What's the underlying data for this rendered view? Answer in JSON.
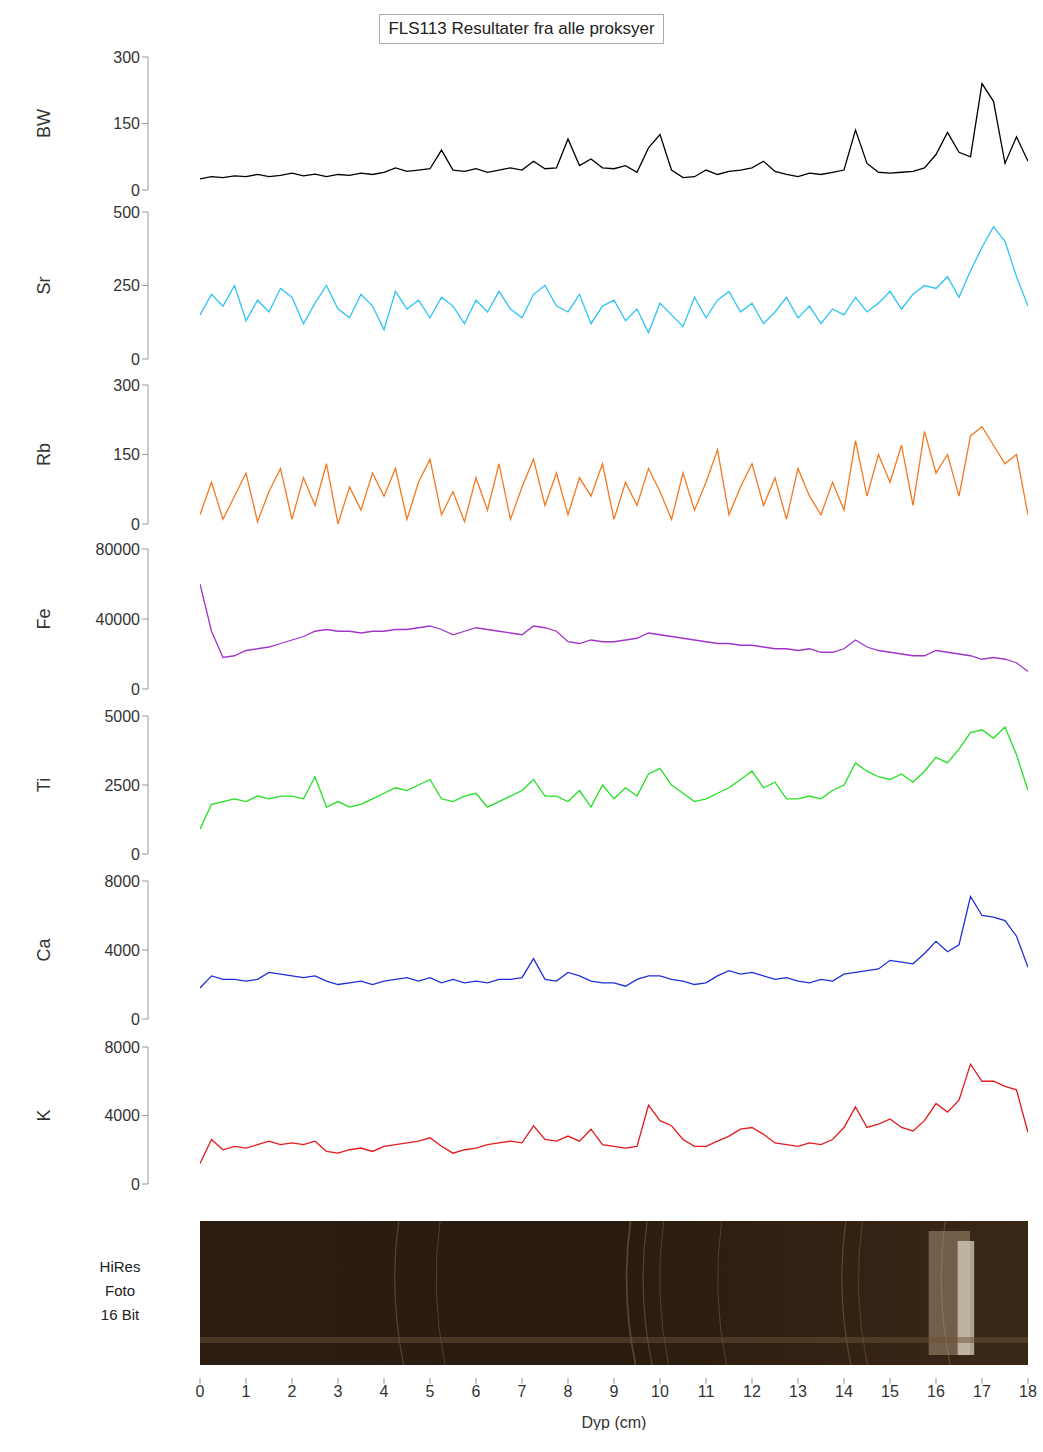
{
  "title": "FLS113 Resultater fra alle proksyer",
  "photo_label": [
    "HiRes",
    "Foto",
    "16 Bit"
  ],
  "x_axis": {
    "label": "Dyp (cm)",
    "xlim": [
      0,
      18
    ],
    "xticks": [
      0,
      1,
      2,
      3,
      4,
      5,
      6,
      7,
      8,
      9,
      10,
      11,
      12,
      13,
      14,
      15,
      16,
      17,
      18
    ]
  },
  "chart_data": [
    {
      "type": "line",
      "y_label": "BW",
      "ylim": [
        0,
        300
      ],
      "yticks": [
        0,
        150,
        300
      ],
      "xlim": [
        0,
        18
      ],
      "tick_labels": "y",
      "x": [
        0,
        0.25,
        0.5,
        0.75,
        1,
        1.25,
        1.5,
        1.75,
        2,
        2.25,
        2.5,
        2.75,
        3,
        3.25,
        3.5,
        3.75,
        4,
        4.25,
        4.5,
        4.75,
        5,
        5.25,
        5.5,
        5.75,
        6,
        6.25,
        6.5,
        6.75,
        7,
        7.25,
        7.5,
        7.75,
        8,
        8.25,
        8.5,
        8.75,
        9,
        9.25,
        9.5,
        9.75,
        10,
        10.25,
        10.5,
        10.75,
        11,
        11.25,
        11.5,
        11.75,
        12,
        12.25,
        12.5,
        12.75,
        13,
        13.25,
        13.5,
        13.75,
        14,
        14.25,
        14.5,
        14.75,
        15,
        15.25,
        15.5,
        15.75,
        16,
        16.25,
        16.5,
        16.75,
        17,
        17.25,
        17.5,
        17.75,
        18
      ],
      "series": [
        {
          "color": "#000000",
          "values": [
            25,
            30,
            28,
            32,
            30,
            35,
            30,
            33,
            38,
            32,
            36,
            30,
            35,
            33,
            38,
            35,
            40,
            50,
            42,
            45,
            48,
            90,
            45,
            42,
            48,
            40,
            45,
            50,
            45,
            65,
            48,
            50,
            115,
            55,
            70,
            50,
            48,
            55,
            40,
            95,
            125,
            45,
            28,
            30,
            45,
            35,
            42,
            45,
            50,
            65,
            42,
            35,
            30,
            38,
            35,
            40,
            45,
            135,
            60,
            40,
            38,
            40,
            42,
            50,
            80,
            130,
            85,
            75,
            240,
            200,
            60,
            120,
            65
          ]
        }
      ]
    },
    {
      "type": "line",
      "y_label": "Sr",
      "ylim": [
        0,
        500
      ],
      "yticks": [
        0,
        250,
        500
      ],
      "xlim": [
        0,
        18
      ],
      "tick_labels": "y",
      "x": [
        0,
        0.25,
        0.5,
        0.75,
        1,
        1.25,
        1.5,
        1.75,
        2,
        2.25,
        2.5,
        2.75,
        3,
        3.25,
        3.5,
        3.75,
        4,
        4.25,
        4.5,
        4.75,
        5,
        5.25,
        5.5,
        5.75,
        6,
        6.25,
        6.5,
        6.75,
        7,
        7.25,
        7.5,
        7.75,
        8,
        8.25,
        8.5,
        8.75,
        9,
        9.25,
        9.5,
        9.75,
        10,
        10.25,
        10.5,
        10.75,
        11,
        11.25,
        11.5,
        11.75,
        12,
        12.25,
        12.5,
        12.75,
        13,
        13.25,
        13.5,
        13.75,
        14,
        14.25,
        14.5,
        14.75,
        15,
        15.25,
        15.5,
        15.75,
        16,
        16.25,
        16.5,
        16.75,
        17,
        17.25,
        17.5,
        17.75,
        18
      ],
      "series": [
        {
          "color": "#2ec4f4",
          "values": [
            150,
            220,
            180,
            250,
            130,
            200,
            160,
            240,
            210,
            120,
            190,
            250,
            170,
            140,
            220,
            180,
            100,
            230,
            170,
            200,
            140,
            210,
            180,
            120,
            200,
            160,
            230,
            170,
            140,
            220,
            250,
            180,
            160,
            220,
            120,
            180,
            200,
            130,
            170,
            90,
            190,
            150,
            110,
            210,
            140,
            200,
            230,
            160,
            190,
            120,
            160,
            210,
            140,
            180,
            120,
            170,
            150,
            210,
            160,
            190,
            230,
            170,
            220,
            250,
            240,
            280,
            210,
            300,
            380,
            450,
            400,
            280,
            180
          ]
        }
      ]
    },
    {
      "type": "line",
      "y_label": "Rb",
      "ylim": [
        0,
        300
      ],
      "yticks": [
        0,
        150,
        300
      ],
      "xlim": [
        0,
        18
      ],
      "tick_labels": "y",
      "x": [
        0,
        0.25,
        0.5,
        0.75,
        1,
        1.25,
        1.5,
        1.75,
        2,
        2.25,
        2.5,
        2.75,
        3,
        3.25,
        3.5,
        3.75,
        4,
        4.25,
        4.5,
        4.75,
        5,
        5.25,
        5.5,
        5.75,
        6,
        6.25,
        6.5,
        6.75,
        7,
        7.25,
        7.5,
        7.75,
        8,
        8.25,
        8.5,
        8.75,
        9,
        9.25,
        9.5,
        9.75,
        10,
        10.25,
        10.5,
        10.75,
        11,
        11.25,
        11.5,
        11.75,
        12,
        12.25,
        12.5,
        12.75,
        13,
        13.25,
        13.5,
        13.75,
        14,
        14.25,
        14.5,
        14.75,
        15,
        15.25,
        15.5,
        15.75,
        16,
        16.25,
        16.5,
        16.75,
        17,
        17.25,
        17.5,
        17.75,
        18
      ],
      "series": [
        {
          "color": "#f47920",
          "values": [
            20,
            90,
            10,
            60,
            110,
            5,
            70,
            120,
            10,
            100,
            40,
            130,
            0,
            80,
            30,
            110,
            60,
            120,
            10,
            90,
            140,
            20,
            70,
            5,
            100,
            30,
            130,
            10,
            80,
            140,
            40,
            110,
            20,
            100,
            60,
            130,
            10,
            90,
            40,
            120,
            70,
            10,
            110,
            30,
            90,
            160,
            20,
            80,
            130,
            40,
            100,
            10,
            120,
            60,
            20,
            90,
            30,
            180,
            60,
            150,
            90,
            170,
            40,
            200,
            110,
            150,
            60,
            190,
            210,
            170,
            130,
            150,
            20
          ]
        }
      ]
    },
    {
      "type": "line",
      "y_label": "Fe",
      "ylim": [
        0,
        80000
      ],
      "yticks": [
        0,
        40000,
        80000
      ],
      "xlim": [
        0,
        18
      ],
      "tick_labels": "y",
      "x": [
        0,
        0.25,
        0.5,
        0.75,
        1,
        1.25,
        1.5,
        1.75,
        2,
        2.25,
        2.5,
        2.75,
        3,
        3.25,
        3.5,
        3.75,
        4,
        4.25,
        4.5,
        4.75,
        5,
        5.25,
        5.5,
        5.75,
        6,
        6.25,
        6.5,
        6.75,
        7,
        7.25,
        7.5,
        7.75,
        8,
        8.25,
        8.5,
        8.75,
        9,
        9.25,
        9.5,
        9.75,
        10,
        10.25,
        10.5,
        10.75,
        11,
        11.25,
        11.5,
        11.75,
        12,
        12.25,
        12.5,
        12.75,
        13,
        13.25,
        13.5,
        13.75,
        14,
        14.25,
        14.5,
        14.75,
        15,
        15.25,
        15.5,
        15.75,
        16,
        16.25,
        16.5,
        16.75,
        17,
        17.25,
        17.5,
        17.75,
        18
      ],
      "series": [
        {
          "color": "#a035c8",
          "values": [
            60000,
            33000,
            18000,
            19000,
            22000,
            23000,
            24000,
            26000,
            28000,
            30000,
            33000,
            34000,
            33000,
            33000,
            32000,
            33000,
            33000,
            34000,
            34000,
            35000,
            36000,
            34000,
            31000,
            33000,
            35000,
            34000,
            33000,
            32000,
            31000,
            36000,
            35000,
            33000,
            27000,
            26000,
            28000,
            27000,
            27000,
            28000,
            29000,
            32000,
            31000,
            30000,
            29000,
            28000,
            27000,
            26000,
            26000,
            25000,
            25000,
            24000,
            23000,
            23000,
            22000,
            23000,
            21000,
            21000,
            23000,
            28000,
            24000,
            22000,
            21000,
            20000,
            19000,
            19000,
            22000,
            21000,
            20000,
            19000,
            17000,
            18000,
            17000,
            15000,
            10000
          ]
        }
      ]
    },
    {
      "type": "line",
      "y_label": "Ti",
      "ylim": [
        0,
        5000
      ],
      "yticks": [
        0,
        2500,
        5000
      ],
      "xlim": [
        0,
        18
      ],
      "tick_labels": "y",
      "x": [
        0,
        0.25,
        0.5,
        0.75,
        1,
        1.25,
        1.5,
        1.75,
        2,
        2.25,
        2.5,
        2.75,
        3,
        3.25,
        3.5,
        3.75,
        4,
        4.25,
        4.5,
        4.75,
        5,
        5.25,
        5.5,
        5.75,
        6,
        6.25,
        6.5,
        6.75,
        7,
        7.25,
        7.5,
        7.75,
        8,
        8.25,
        8.5,
        8.75,
        9,
        9.25,
        9.5,
        9.75,
        10,
        10.25,
        10.5,
        10.75,
        11,
        11.25,
        11.5,
        11.75,
        12,
        12.25,
        12.5,
        12.75,
        13,
        13.25,
        13.5,
        13.75,
        14,
        14.25,
        14.5,
        14.75,
        15,
        15.25,
        15.5,
        15.75,
        16,
        16.25,
        16.5,
        16.75,
        17,
        17.25,
        17.5,
        17.75,
        18
      ],
      "series": [
        {
          "color": "#22e022",
          "values": [
            900,
            1800,
            1900,
            2000,
            1900,
            2100,
            2000,
            2100,
            2100,
            2000,
            2800,
            1700,
            1900,
            1700,
            1800,
            2000,
            2200,
            2400,
            2300,
            2500,
            2700,
            2000,
            1900,
            2100,
            2200,
            1700,
            1900,
            2100,
            2300,
            2700,
            2100,
            2100,
            1900,
            2300,
            1700,
            2500,
            2000,
            2400,
            2100,
            2900,
            3100,
            2500,
            2200,
            1900,
            2000,
            2200,
            2400,
            2700,
            3000,
            2400,
            2600,
            2000,
            2000,
            2100,
            2000,
            2300,
            2500,
            3300,
            3000,
            2800,
            2700,
            2900,
            2600,
            3000,
            3500,
            3300,
            3800,
            4400,
            4500,
            4200,
            4600,
            3600,
            2300
          ]
        }
      ]
    },
    {
      "type": "line",
      "y_label": "Ca",
      "ylim": [
        0,
        8000
      ],
      "yticks": [
        0,
        4000,
        8000
      ],
      "xlim": [
        0,
        18
      ],
      "tick_labels": "y",
      "x": [
        0,
        0.25,
        0.5,
        0.75,
        1,
        1.25,
        1.5,
        1.75,
        2,
        2.25,
        2.5,
        2.75,
        3,
        3.25,
        3.5,
        3.75,
        4,
        4.25,
        4.5,
        4.75,
        5,
        5.25,
        5.5,
        5.75,
        6,
        6.25,
        6.5,
        6.75,
        7,
        7.25,
        7.5,
        7.75,
        8,
        8.25,
        8.5,
        8.75,
        9,
        9.25,
        9.5,
        9.75,
        10,
        10.25,
        10.5,
        10.75,
        11,
        11.25,
        11.5,
        11.75,
        12,
        12.25,
        12.5,
        12.75,
        13,
        13.25,
        13.5,
        13.75,
        14,
        14.25,
        14.5,
        14.75,
        15,
        15.25,
        15.5,
        15.75,
        16,
        16.25,
        16.5,
        16.75,
        17,
        17.25,
        17.5,
        17.75,
        18
      ],
      "series": [
        {
          "color": "#1f2fd8",
          "values": [
            1800,
            2500,
            2300,
            2300,
            2200,
            2300,
            2700,
            2600,
            2500,
            2400,
            2500,
            2200,
            2000,
            2100,
            2200,
            2000,
            2200,
            2300,
            2400,
            2200,
            2400,
            2100,
            2300,
            2100,
            2200,
            2100,
            2300,
            2300,
            2400,
            3500,
            2300,
            2200,
            2700,
            2500,
            2200,
            2100,
            2100,
            1900,
            2300,
            2500,
            2500,
            2300,
            2200,
            2000,
            2100,
            2500,
            2800,
            2600,
            2700,
            2500,
            2300,
            2400,
            2200,
            2100,
            2300,
            2200,
            2600,
            2700,
            2800,
            2900,
            3400,
            3300,
            3200,
            3800,
            4500,
            3900,
            4300,
            7100,
            6000,
            5900,
            5700,
            4800,
            3000
          ]
        }
      ]
    },
    {
      "type": "line",
      "y_label": "K",
      "ylim": [
        0,
        8000
      ],
      "yticks": [
        0,
        4000,
        8000
      ],
      "xlim": [
        0,
        18
      ],
      "tick_labels": "y",
      "x": [
        0,
        0.25,
        0.5,
        0.75,
        1,
        1.25,
        1.5,
        1.75,
        2,
        2.25,
        2.5,
        2.75,
        3,
        3.25,
        3.5,
        3.75,
        4,
        4.25,
        4.5,
        4.75,
        5,
        5.25,
        5.5,
        5.75,
        6,
        6.25,
        6.5,
        6.75,
        7,
        7.25,
        7.5,
        7.75,
        8,
        8.25,
        8.5,
        8.75,
        9,
        9.25,
        9.5,
        9.75,
        10,
        10.25,
        10.5,
        10.75,
        11,
        11.25,
        11.5,
        11.75,
        12,
        12.25,
        12.5,
        12.75,
        13,
        13.25,
        13.5,
        13.75,
        14,
        14.25,
        14.5,
        14.75,
        15,
        15.25,
        15.5,
        15.75,
        16,
        16.25,
        16.5,
        16.75,
        17,
        17.25,
        17.5,
        17.75,
        18
      ],
      "series": [
        {
          "color": "#e31a1c",
          "values": [
            1200,
            2600,
            2000,
            2200,
            2100,
            2300,
            2500,
            2300,
            2400,
            2300,
            2500,
            1900,
            1800,
            2000,
            2100,
            1900,
            2200,
            2300,
            2400,
            2500,
            2700,
            2200,
            1800,
            2000,
            2100,
            2300,
            2400,
            2500,
            2400,
            3400,
            2600,
            2500,
            2800,
            2500,
            3200,
            2300,
            2200,
            2100,
            2200,
            4600,
            3700,
            3400,
            2600,
            2200,
            2200,
            2500,
            2800,
            3200,
            3300,
            2900,
            2400,
            2300,
            2200,
            2400,
            2300,
            2600,
            3300,
            4500,
            3300,
            3500,
            3800,
            3300,
            3100,
            3700,
            4700,
            4200,
            4900,
            7000,
            6000,
            6000,
            5700,
            5500,
            3000
          ]
        }
      ]
    }
  ]
}
